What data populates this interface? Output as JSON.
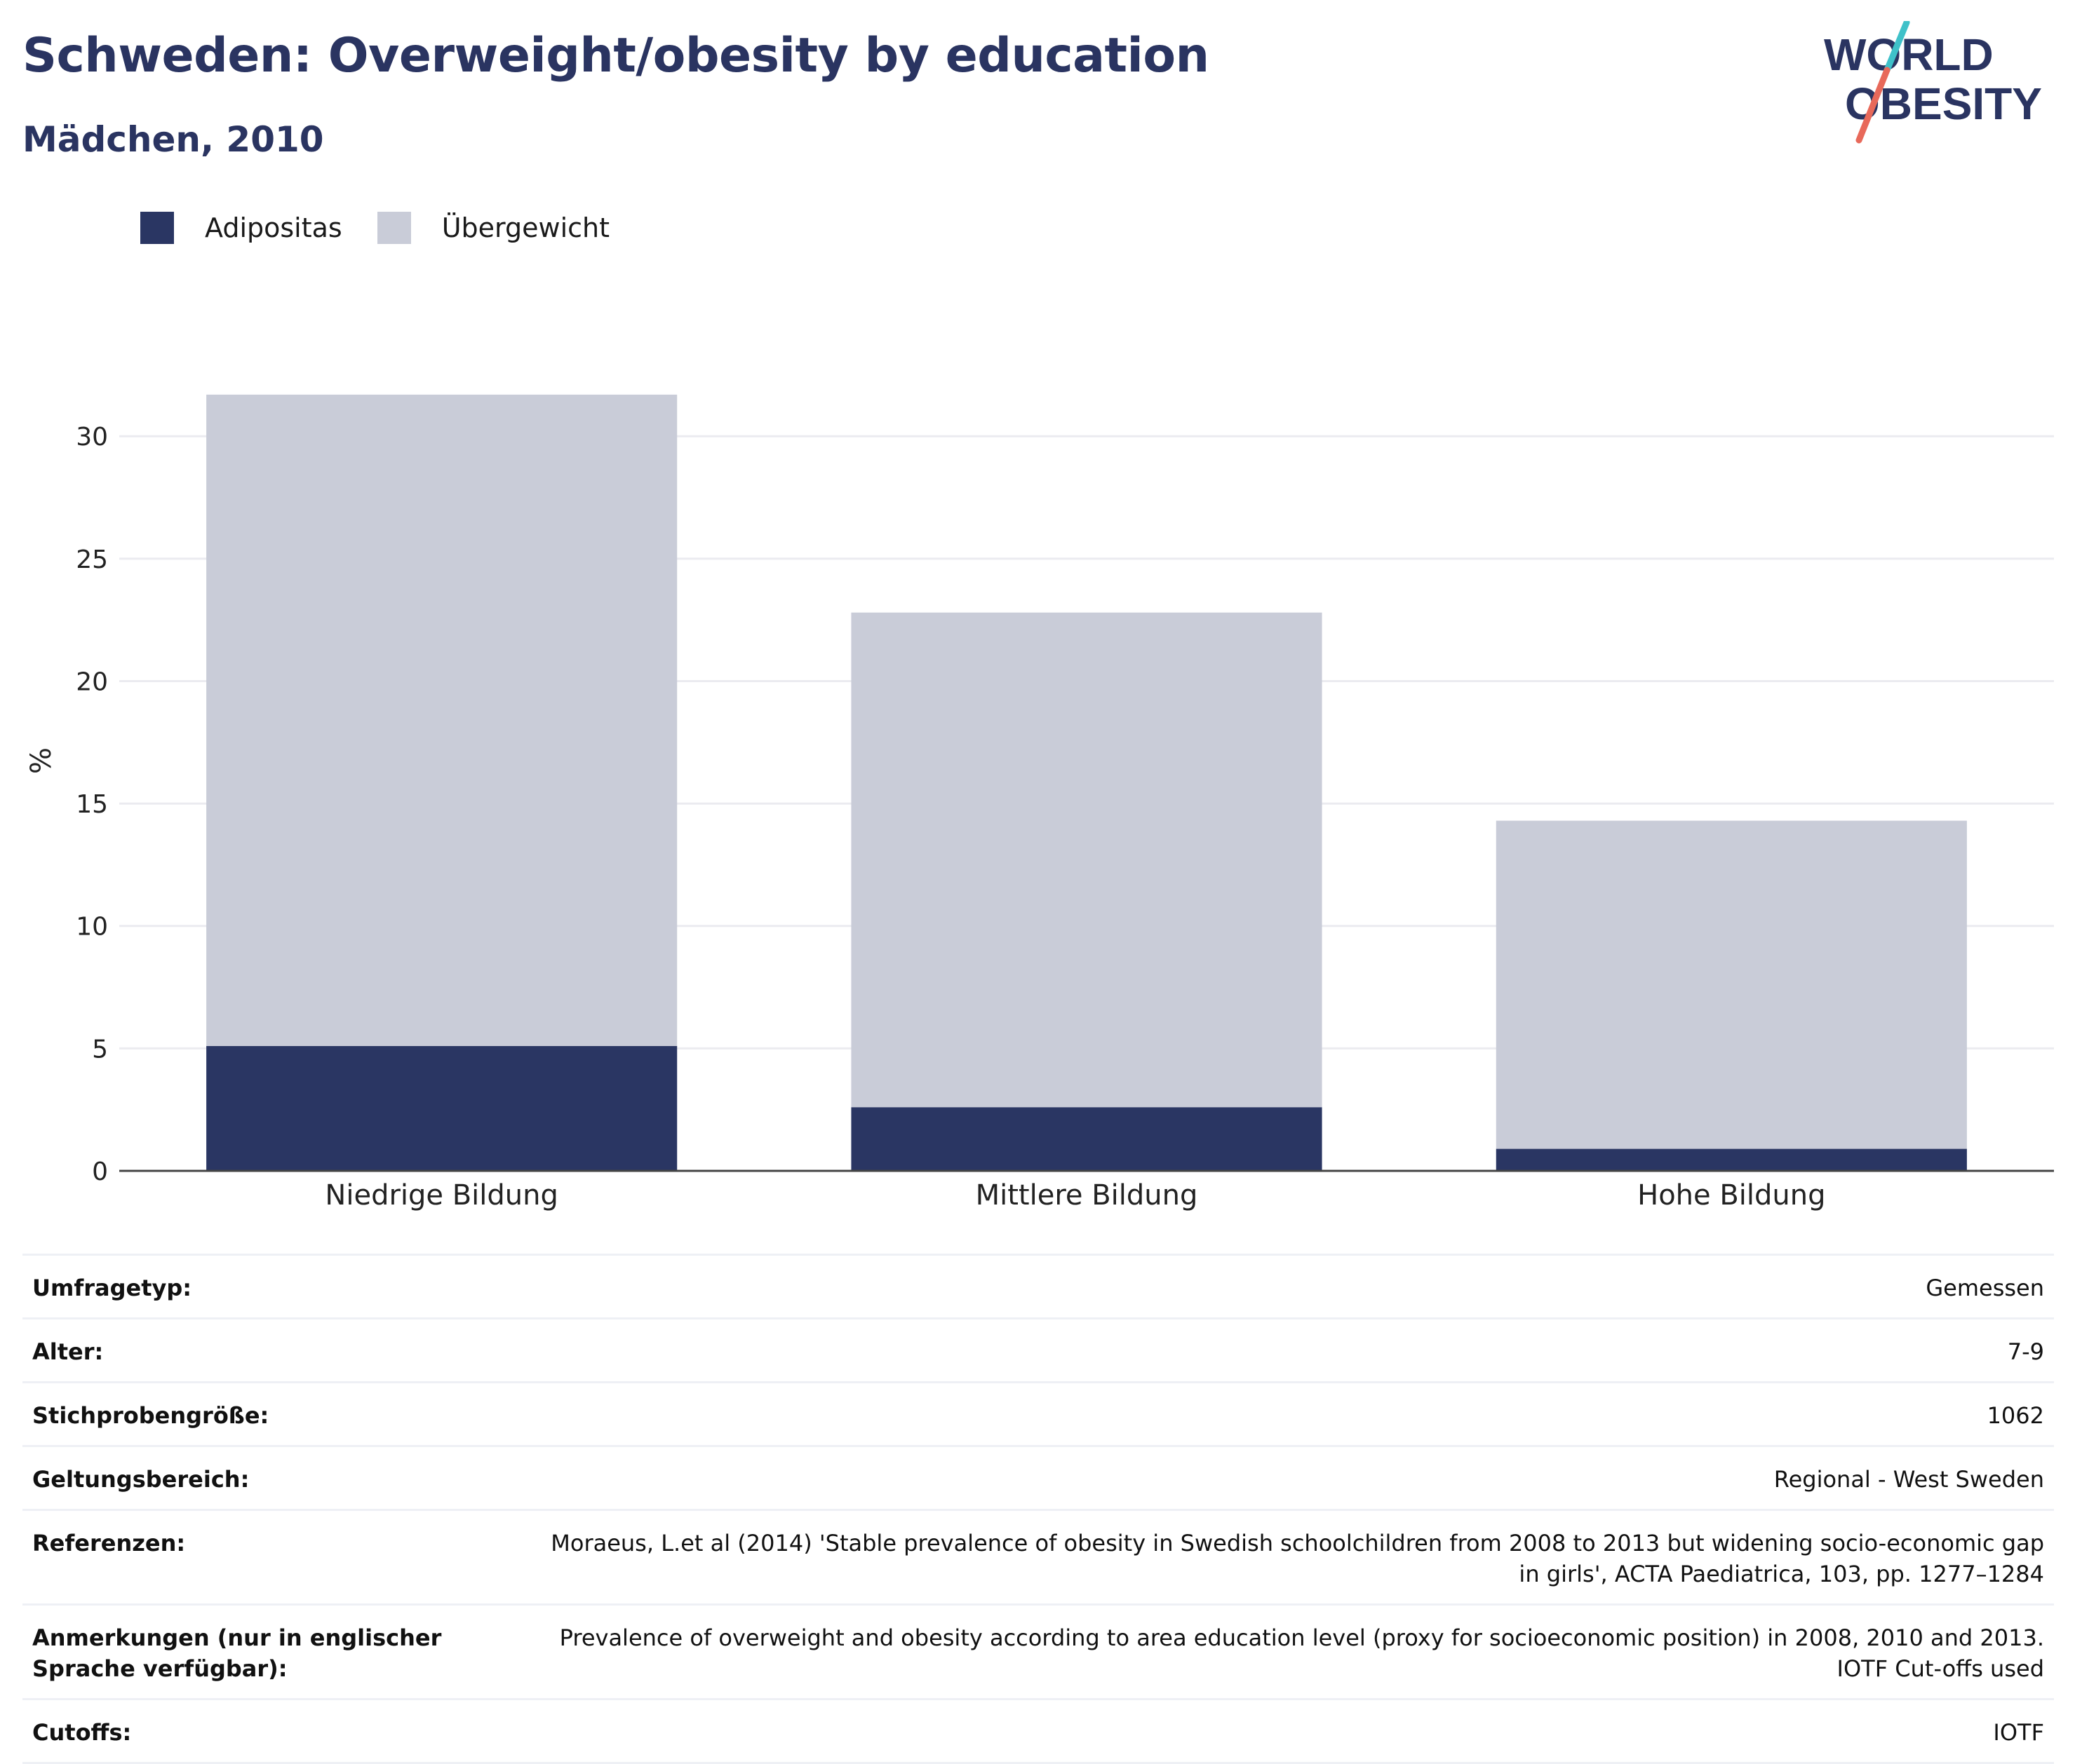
{
  "header": {
    "title": "Schweden: Overweight/obesity by education",
    "subtitle": "Mädchen, 2010"
  },
  "logo": {
    "line1": "WORLD",
    "line2": "OBESITY",
    "colors": {
      "text": "#2a3461",
      "slash_top": "#3fc1c9",
      "slash_bottom": "#e8695a"
    }
  },
  "legend": [
    {
      "label": "Adipositas",
      "color": "#2a3663"
    },
    {
      "label": "Übergewicht",
      "color": "#c9ccd8"
    }
  ],
  "chart_data": {
    "type": "bar",
    "stacked": true,
    "categories": [
      "Niedrige Bildung",
      "Mittlere Bildung",
      "Hohe Bildung"
    ],
    "series": [
      {
        "name": "Adipositas",
        "values": [
          5.1,
          2.6,
          0.9
        ],
        "color": "#2a3663"
      },
      {
        "name": "Übergewicht",
        "values": [
          26.6,
          20.2,
          13.4
        ],
        "color": "#c9ccd8"
      }
    ],
    "totals": [
      31.7,
      22.8,
      14.3
    ],
    "ylabel": "%",
    "ylim": [
      0,
      33.5
    ],
    "yticks": [
      0,
      5,
      10,
      15,
      20,
      25,
      30
    ],
    "grid": true,
    "legend_position": "top-left"
  },
  "meta": [
    {
      "key": "Umfragetyp:",
      "value": "Gemessen"
    },
    {
      "key": "Alter:",
      "value": "7-9"
    },
    {
      "key": "Stichprobengröße:",
      "value": "1062"
    },
    {
      "key": "Geltungsbereich:",
      "value": "Regional - West Sweden"
    },
    {
      "key": "Referenzen:",
      "value": "Moraeus, L.et al (2014) 'Stable prevalence of obesity in Swedish schoolchildren from 2008 to 2013 but widening socio-economic gap in girls', ACTA Paediatrica, 103, pp. 1277–1284"
    },
    {
      "key": "Anmerkungen (nur in englischer Sprache verfügbar):",
      "value": "Prevalence of overweight and obesity according to area education level (proxy for socioeconomic position) in 2008, 2010 and 2013. IOTF Cut-offs used"
    },
    {
      "key": "Cutoffs:",
      "value": "IOTF"
    }
  ]
}
